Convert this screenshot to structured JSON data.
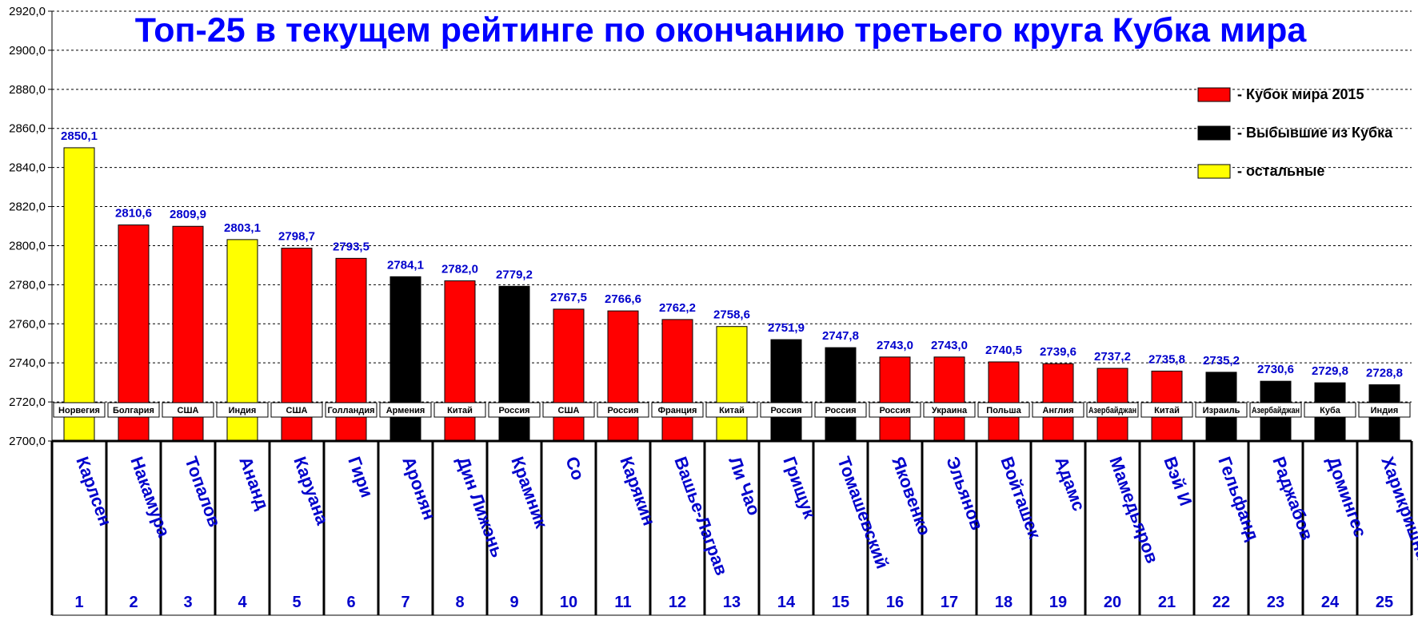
{
  "chart_data": {
    "type": "bar",
    "title": "Топ-25 в текущем рейтинге по окончанию третьего круга Кубка мира",
    "ylim": [
      2700,
      2920
    ],
    "ytick_step": 20,
    "ytick_labels": [
      "2700,0",
      "2720,0",
      "2740,0",
      "2760,0",
      "2780,0",
      "2800,0",
      "2820,0",
      "2840,0",
      "2860,0",
      "2880,0",
      "2900,0",
      "2920,0"
    ],
    "grid": true,
    "legend_position": "top-right",
    "legend": [
      {
        "key": "red",
        "label": "- Кубок мира 2015"
      },
      {
        "key": "black",
        "label": "- Выбывшие из Кубка"
      },
      {
        "key": "yellow",
        "label": "- остальные"
      }
    ],
    "colors": {
      "red": "#ff0000",
      "black": "#000000",
      "yellow": "#ffff00",
      "text_blue": "#0000cc",
      "title_blue": "#0000ff"
    },
    "categories": [
      "1",
      "2",
      "3",
      "4",
      "5",
      "6",
      "7",
      "8",
      "9",
      "10",
      "11",
      "12",
      "13",
      "14",
      "15",
      "16",
      "17",
      "18",
      "19",
      "20",
      "21",
      "22",
      "23",
      "24",
      "25"
    ],
    "players": [
      "Карлсен",
      "Накамура",
      "Топалов",
      "Ананд",
      "Каруана",
      "Гири",
      "Аронян",
      "Дин Лижэнь",
      "Крамник",
      "Со",
      "Карякин",
      "Вашье-Лаграв",
      "Ли Чао",
      "Грищук",
      "Томашевский",
      "Яковенко",
      "Эльянов",
      "Войташек",
      "Адамс",
      "Мамедьяров",
      "Вэй И",
      "Гельфанд",
      "Раджабов",
      "Домингес",
      "Харикришна"
    ],
    "countries": [
      "Норвегия",
      "Болгария",
      "США",
      "Индия",
      "США",
      "Голландия",
      "Армения",
      "Китай",
      "Россия",
      "США",
      "Россия",
      "Франция",
      "Китай",
      "Россия",
      "Россия",
      "Россия",
      "Украина",
      "Польша",
      "Англия",
      "Азербайджан",
      "Китай",
      "Израиль",
      "Азербайджан",
      "Куба",
      "Индия"
    ],
    "values": [
      2850.1,
      2810.6,
      2809.9,
      2803.1,
      2798.7,
      2793.5,
      2784.1,
      2782.0,
      2779.2,
      2767.5,
      2766.6,
      2762.2,
      2758.6,
      2751.9,
      2747.8,
      2743.0,
      2743.0,
      2740.5,
      2739.6,
      2737.2,
      2735.8,
      2735.2,
      2730.6,
      2729.8,
      2728.8
    ],
    "value_labels": [
      "2850,1",
      "2810,6",
      "2809,9",
      "2803,1",
      "2798,7",
      "2793,5",
      "2784,1",
      "2782,0",
      "2779,2",
      "2767,5",
      "2766,6",
      "2762,2",
      "2758,6",
      "2751,9",
      "2747,8",
      "2743,0",
      "2743,0",
      "2740,5",
      "2739,6",
      "2737,2",
      "2735,8",
      "2735,2",
      "2730,6",
      "2729,8",
      "2728,8"
    ],
    "bar_groups": [
      "yellow",
      "red",
      "red",
      "yellow",
      "red",
      "red",
      "black",
      "red",
      "black",
      "red",
      "red",
      "red",
      "yellow",
      "black",
      "black",
      "red",
      "red",
      "red",
      "red",
      "red",
      "red",
      "black",
      "black",
      "black",
      "black"
    ]
  }
}
